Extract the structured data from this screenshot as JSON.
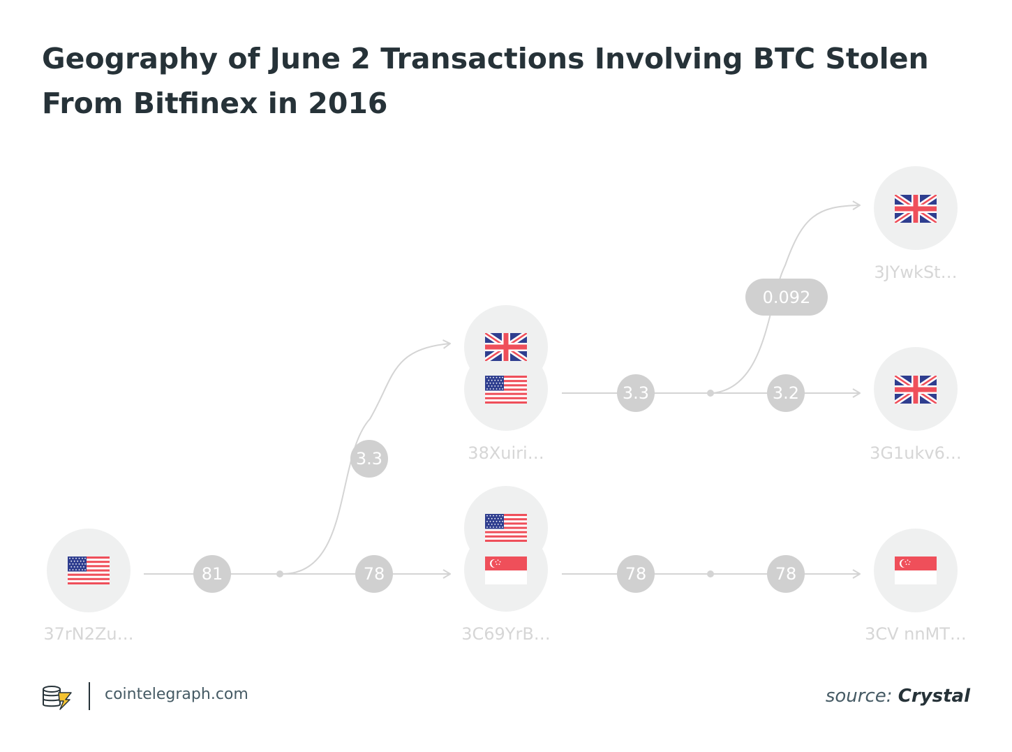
{
  "title": {
    "line1": "Geography of June 2 Transactions Involving BTC Stolen",
    "line2": "From Bitfinex in 2016"
  },
  "nodes": [
    {
      "id": "n1",
      "address": "37rN2Zu…",
      "flags": [
        "us"
      ]
    },
    {
      "id": "n2",
      "address": "38Xuiri…",
      "flags": [
        "uk",
        "us"
      ]
    },
    {
      "id": "n3",
      "address": "3C69YrB…",
      "flags": [
        "us",
        "sg"
      ]
    },
    {
      "id": "n4",
      "address": "3JYwkSt…",
      "flags": [
        "uk"
      ]
    },
    {
      "id": "n5",
      "address": "3G1ukv6…",
      "flags": [
        "uk"
      ]
    },
    {
      "id": "n6",
      "address": "3CV nnMT…",
      "flags": [
        "sg"
      ]
    }
  ],
  "edges": [
    {
      "from": "n1",
      "to": "split1",
      "amount": "81"
    },
    {
      "from": "split1",
      "to": "n2",
      "amount": "3.3"
    },
    {
      "from": "split1",
      "to": "n3",
      "amount": "78"
    },
    {
      "from": "n2",
      "to": "split2",
      "amount": "3.3"
    },
    {
      "from": "split2",
      "to": "n4",
      "amount": "0.092"
    },
    {
      "from": "split2",
      "to": "n5",
      "amount": "3.2"
    },
    {
      "from": "n3",
      "to": "split3",
      "amount": "78"
    },
    {
      "from": "split3",
      "to": "n6",
      "amount": "78"
    }
  ],
  "footer": {
    "site": "cointelegraph.com",
    "source_prefix": "source: ",
    "source_name": "Crystal"
  },
  "colors": {
    "title": "#263238",
    "node": "#eff0f0",
    "edge": "#d4d4d4",
    "pill": "#d0d0d0",
    "address": "#d6d6d6",
    "logo_accent": "#f5c330"
  },
  "icons": [
    "us-flag-icon",
    "uk-flag-icon",
    "singapore-flag-icon",
    "cointelegraph-logo-icon",
    "arrow-icon"
  ]
}
